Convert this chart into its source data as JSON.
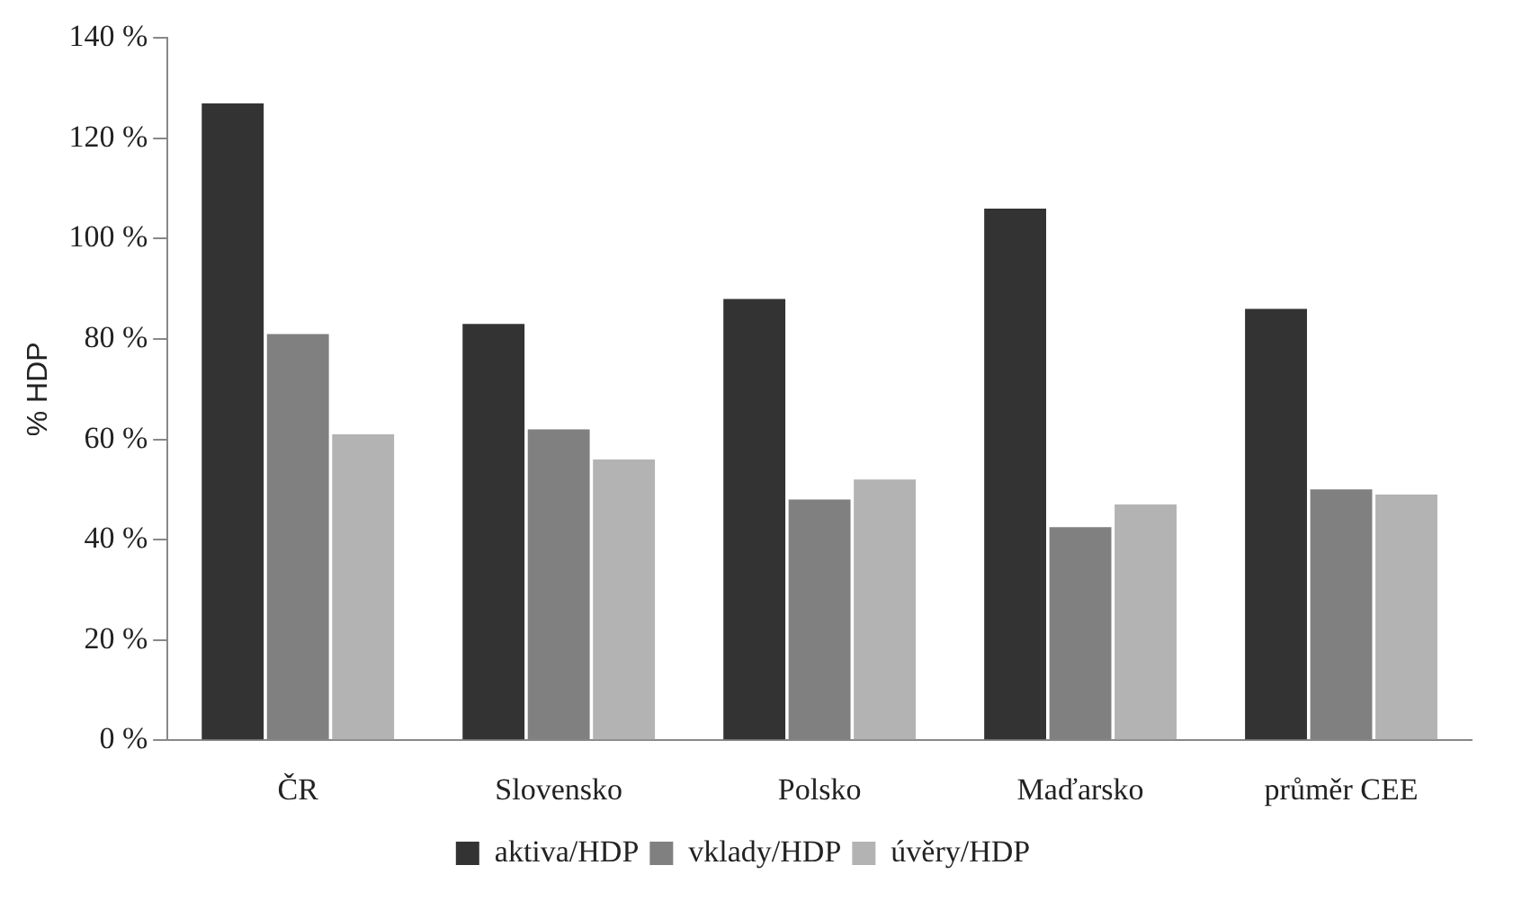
{
  "chart_data": {
    "type": "bar",
    "ylabel": "% HDP",
    "categories": [
      "ČR",
      "Slovensko",
      "Polsko",
      "Maďarsko",
      "průměr CEE"
    ],
    "series": [
      {
        "name": "aktiva/HDP",
        "color": "#333333",
        "values": [
          127,
          83,
          88,
          106,
          86
        ]
      },
      {
        "name": "vklady/HDP",
        "color": "#808080",
        "values": [
          81,
          62,
          48,
          42.5,
          50
        ]
      },
      {
        "name": "úvěry/HDP",
        "color": "#b3b3b3",
        "values": [
          61,
          56,
          52,
          47,
          49
        ]
      }
    ],
    "ylim": [
      0,
      140
    ],
    "yticks": [
      {
        "value": 0,
        "label": "0 %"
      },
      {
        "value": 20,
        "label": "20 %"
      },
      {
        "value": 40,
        "label": "40 %"
      },
      {
        "value": 60,
        "label": "60 %"
      },
      {
        "value": 80,
        "label": "80 %"
      },
      {
        "value": 100,
        "label": "100 %"
      },
      {
        "value": 120,
        "label": "120 %"
      },
      {
        "value": 140,
        "label": "140 %"
      }
    ],
    "grid": false,
    "legend": "bottom"
  }
}
